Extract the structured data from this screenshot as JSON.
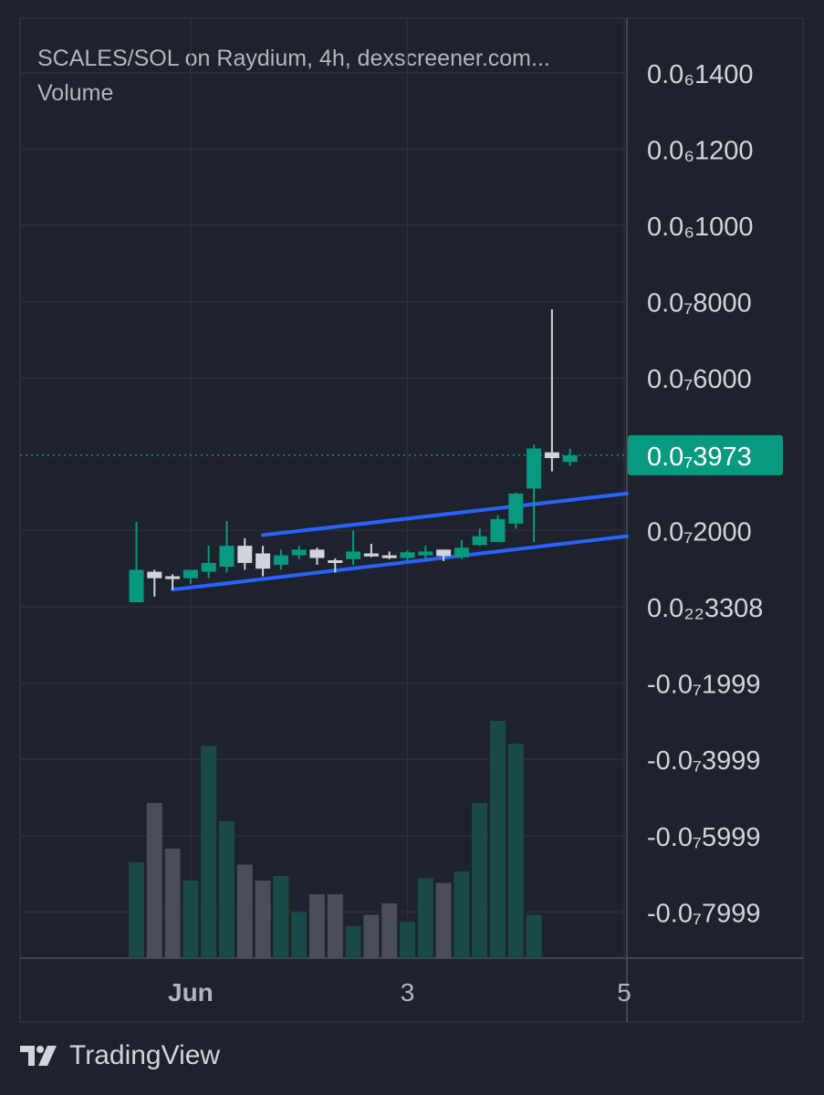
{
  "header": {
    "title": "SCALES/SOL on Raydium, 4h, dexscreener.com...",
    "volume_label": "Volume"
  },
  "footer": {
    "brand": "TradingView"
  },
  "colors": {
    "background": "#1e222d",
    "grid": "#2a2e39",
    "up": "#089981",
    "down": "#d1d4dc",
    "trendline": "#2962ff",
    "price_badge": "#089981",
    "volume_up": "#1a4a45",
    "volume_down": "#4a4e59"
  },
  "chart_data": {
    "type": "candlestick",
    "title": "SCALES/SOL on Raydium, 4h, dexscreener.com...",
    "symbol": "SCALES/SOL",
    "exchange": "Raydium",
    "interval": "4h",
    "y_unit_label": "price in units of 0.0₇ (×1e-8)",
    "ylim": [
      -0.9,
      1.4
    ],
    "y_ticks": [
      {
        "value": 1.4,
        "label": "0.0₆1400"
      },
      {
        "value": 1.2,
        "label": "0.0₆1200"
      },
      {
        "value": 1.0,
        "label": "0.0₆1000"
      },
      {
        "value": 0.8,
        "label": "0.0₇8000"
      },
      {
        "value": 0.6,
        "label": "0.0₇6000"
      },
      {
        "value": 0.2,
        "label": "0.0₇2000"
      },
      {
        "value": 0.0,
        "label": "0.0₂₂3308"
      },
      {
        "value": -0.2,
        "label": "-0.0₇1999"
      },
      {
        "value": -0.4,
        "label": "-0.0₇3999"
      },
      {
        "value": -0.6,
        "label": "-0.0₇5999"
      },
      {
        "value": -0.8,
        "label": "-0.0₇7999"
      }
    ],
    "last_price": {
      "value": 0.3973,
      "label": "0.0₇3973"
    },
    "x_ticks": [
      {
        "index": 3,
        "label": "Jun"
      },
      {
        "index": 15,
        "label": "3"
      },
      {
        "index": 27,
        "label": "5"
      }
    ],
    "candles": [
      {
        "o": 0.012,
        "h": 0.222,
        "l": 0.012,
        "c": 0.097
      },
      {
        "o": 0.092,
        "h": 0.097,
        "l": 0.027,
        "c": 0.075
      },
      {
        "o": 0.08,
        "h": 0.085,
        "l": 0.045,
        "c": 0.078
      },
      {
        "o": 0.075,
        "h": 0.085,
        "l": 0.06,
        "c": 0.097
      },
      {
        "o": 0.092,
        "h": 0.16,
        "l": 0.075,
        "c": 0.115
      },
      {
        "o": 0.105,
        "h": 0.225,
        "l": 0.09,
        "c": 0.16
      },
      {
        "o": 0.16,
        "h": 0.18,
        "l": 0.097,
        "c": 0.115
      },
      {
        "o": 0.14,
        "h": 0.16,
        "l": 0.08,
        "c": 0.1
      },
      {
        "o": 0.11,
        "h": 0.15,
        "l": 0.097,
        "c": 0.135
      },
      {
        "o": 0.135,
        "h": 0.16,
        "l": 0.125,
        "c": 0.15
      },
      {
        "o": 0.15,
        "h": 0.155,
        "l": 0.11,
        "c": 0.128
      },
      {
        "o": 0.122,
        "h": 0.127,
        "l": 0.09,
        "c": 0.12
      },
      {
        "o": 0.125,
        "h": 0.2,
        "l": 0.11,
        "c": 0.145
      },
      {
        "o": 0.14,
        "h": 0.165,
        "l": 0.13,
        "c": 0.132
      },
      {
        "o": 0.135,
        "h": 0.145,
        "l": 0.125,
        "c": 0.128
      },
      {
        "o": 0.128,
        "h": 0.148,
        "l": 0.12,
        "c": 0.143
      },
      {
        "o": 0.135,
        "h": 0.16,
        "l": 0.128,
        "c": 0.145
      },
      {
        "o": 0.15,
        "h": 0.148,
        "l": 0.12,
        "c": 0.133
      },
      {
        "o": 0.13,
        "h": 0.175,
        "l": 0.125,
        "c": 0.155
      },
      {
        "o": 0.162,
        "h": 0.205,
        "l": 0.16,
        "c": 0.185
      },
      {
        "o": 0.17,
        "h": 0.24,
        "l": 0.175,
        "c": 0.23
      },
      {
        "o": 0.218,
        "h": 0.3,
        "l": 0.205,
        "c": 0.297
      },
      {
        "o": 0.31,
        "h": 0.425,
        "l": 0.17,
        "c": 0.415
      },
      {
        "o": 0.405,
        "h": 0.78,
        "l": 0.355,
        "c": 0.39
      },
      {
        "o": 0.38,
        "h": 0.415,
        "l": 0.37,
        "c": 0.397
      }
    ],
    "volume": [
      42,
      68,
      48,
      34,
      93,
      60,
      41,
      34,
      36,
      20,
      28,
      28,
      14,
      19,
      24,
      16,
      35,
      33,
      38,
      68,
      104,
      94,
      19,
      0,
      0
    ],
    "trendlines": [
      {
        "name": "upper",
        "from": {
          "index": 7,
          "value": 0.188
        },
        "to": {
          "index": 27.3,
          "value": 0.297
        }
      },
      {
        "name": "lower",
        "from": {
          "index": 2,
          "value": 0.045
        },
        "to": {
          "index": 27.3,
          "value": 0.185
        }
      }
    ]
  }
}
